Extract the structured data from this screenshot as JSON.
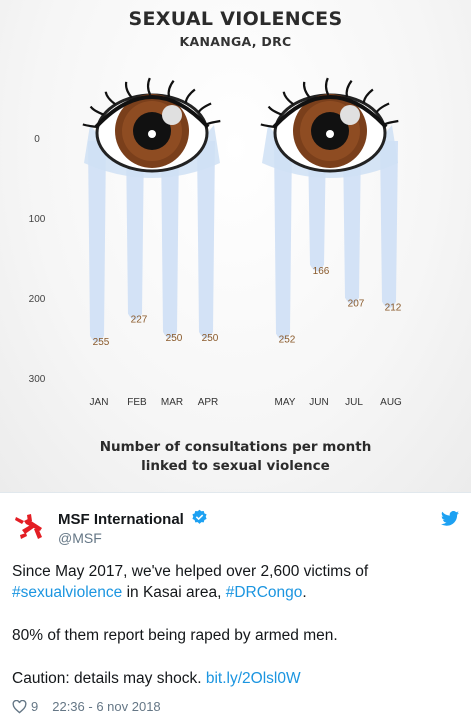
{
  "infographic": {
    "title": "SEXUAL VIOLENCES",
    "subtitle": "KANANGA, DRC",
    "caption_line1": "Number of consultations per month",
    "caption_line2": "linked to sexual violence"
  },
  "chart_data": {
    "type": "bar",
    "title": "SEXUAL VIOLENCES",
    "subtitle": "KANANGA, DRC",
    "categories": [
      "JAN",
      "FEB",
      "MAR",
      "APR",
      "MAY",
      "JUN",
      "JUL",
      "AUG"
    ],
    "values": [
      255,
      227,
      250,
      250,
      252,
      166,
      207,
      212
    ],
    "value_labels": [
      "255",
      "227",
      "250",
      "250",
      "252",
      "166",
      "207",
      "212"
    ],
    "y_ticks": [
      "0",
      "100",
      "200",
      "300"
    ],
    "ylim": [
      0,
      300
    ],
    "y_inverted": true,
    "style": "tear drips falling from two eyes",
    "xlabel": "Number of consultations per month linked to sexual violence",
    "colors": {
      "tears": "#cfe0f5",
      "iris": "#7a3f1b",
      "label": "#8a5a2b"
    }
  },
  "tweet": {
    "author_name": "MSF International",
    "author_handle": "@MSF",
    "text_line1": "Since May 2017, we've helped over 2,600 victims of",
    "hashtag1": "#sexualviolence",
    "text_mid": " in Kasai area, ",
    "hashtag2": "#DRCongo",
    "text_end": ".",
    "paragraph2": "80% of them report being raped by armed men.",
    "paragraph3_prefix": "Caution: details may shock. ",
    "link": "bit.ly/2Olsl0W",
    "likes": "9",
    "timestamp": "22:36 - 6 nov 2018",
    "colors": {
      "link": "#1b95e0",
      "brand": "#e31e24",
      "verified": "#1da1f2",
      "twitter": "#1da1f2"
    },
    "icons": [
      "msf-logo-icon",
      "verified-badge-icon",
      "twitter-bird-icon",
      "heart-icon"
    ]
  }
}
